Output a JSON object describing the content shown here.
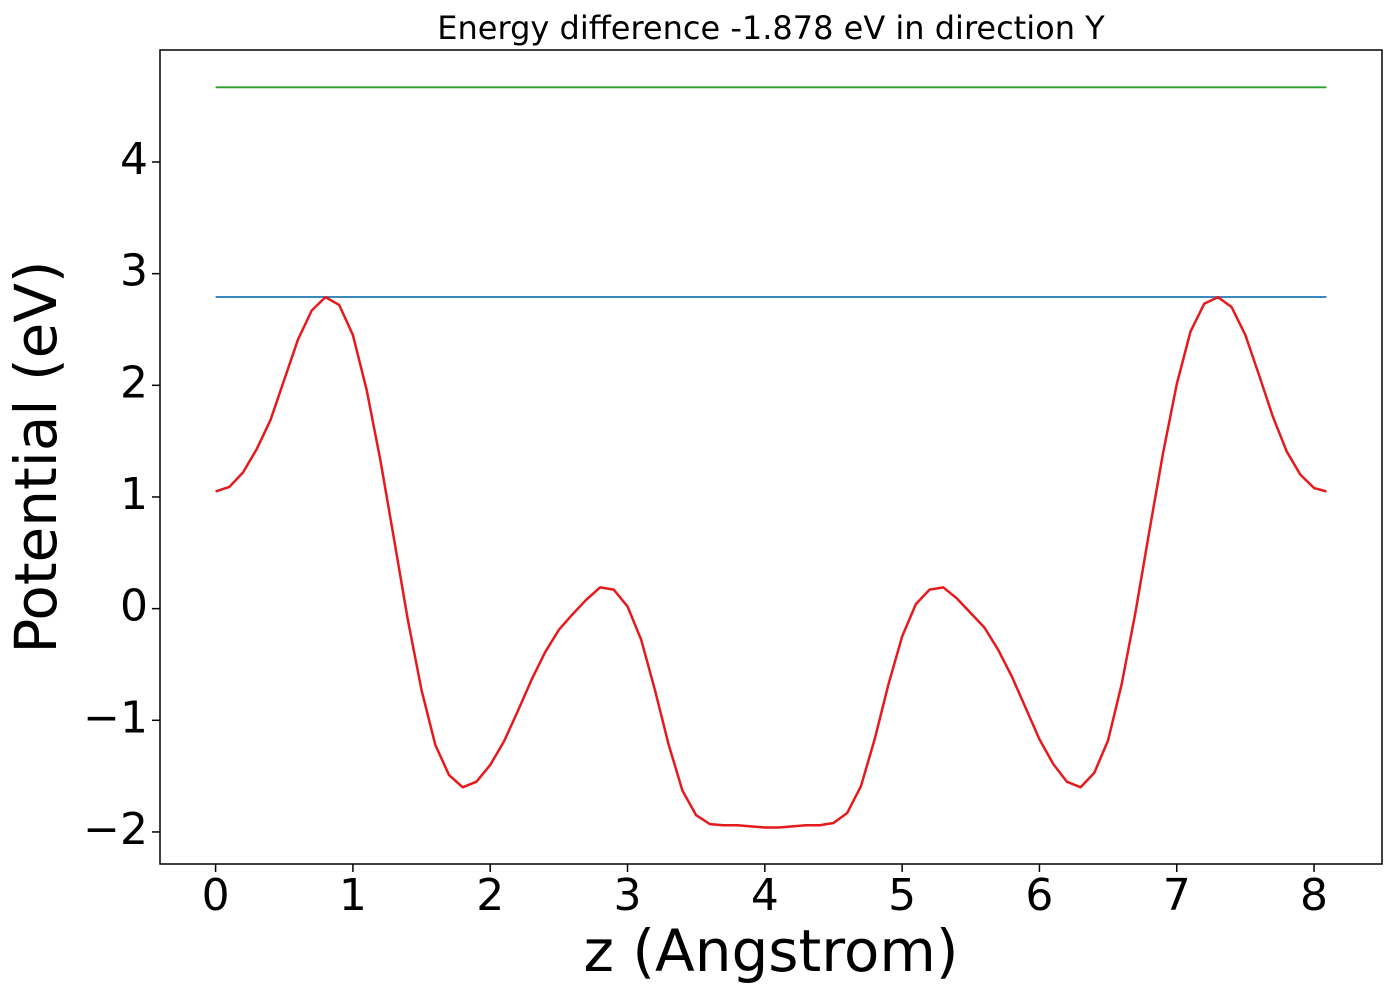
{
  "chart_data": {
    "type": "line",
    "title": "Energy difference -1.878 eV in direction Y",
    "x_label": "z (Angstrom)",
    "y_label": "Potential (eV)",
    "xlim": [
      -0.405,
      8.495
    ],
    "ylim": [
      -2.287,
      5.003
    ],
    "xticks": [
      0,
      1,
      2,
      3,
      4,
      5,
      6,
      7,
      8
    ],
    "yticks": [
      {
        "value": -2,
        "label": "−2"
      },
      {
        "value": -1,
        "label": "−1"
      },
      0,
      1,
      2,
      3,
      4
    ],
    "series": [
      {
        "color": "#2ca02c",
        "x": [
          0,
          8.09
        ],
        "values": [
          4.669,
          4.669
        ]
      },
      {
        "color": "#1f77b4",
        "x": [
          0,
          8.09
        ],
        "values": [
          2.791,
          2.791
        ]
      },
      {
        "color": "#e41a1c",
        "x": [
          0,
          0.1,
          0.2,
          0.3,
          0.4,
          0.5,
          0.6,
          0.7,
          0.8,
          0.9,
          1.0,
          1.1,
          1.2,
          1.3,
          1.4,
          1.5,
          1.6,
          1.7,
          1.8,
          1.9,
          2.0,
          2.1,
          2.2,
          2.3,
          2.4,
          2.5,
          2.6,
          2.7,
          2.8,
          2.9,
          3.0,
          3.1,
          3.2,
          3.3,
          3.4,
          3.5,
          3.6,
          3.7,
          3.8,
          3.9,
          4.0,
          4.1,
          4.2,
          4.3,
          4.4,
          4.5,
          4.6,
          4.7,
          4.8,
          4.9,
          5.0,
          5.1,
          5.2,
          5.3,
          5.4,
          5.5,
          5.6,
          5.7,
          5.8,
          5.9,
          6.0,
          6.1,
          6.2,
          6.3,
          6.4,
          6.5,
          6.6,
          6.7,
          6.8,
          6.9,
          7.0,
          7.1,
          7.2,
          7.3,
          7.4,
          7.5,
          7.6,
          7.7,
          7.8,
          7.9,
          8.0,
          8.09
        ],
        "values": [
          1.05,
          1.09,
          1.22,
          1.43,
          1.69,
          2.05,
          2.41,
          2.67,
          2.79,
          2.72,
          2.45,
          1.96,
          1.33,
          0.62,
          -0.1,
          -0.73,
          -1.22,
          -1.49,
          -1.6,
          -1.55,
          -1.4,
          -1.19,
          -0.92,
          -0.64,
          -0.39,
          -0.19,
          -0.05,
          0.08,
          0.19,
          0.17,
          0.02,
          -0.28,
          -0.73,
          -1.22,
          -1.63,
          -1.85,
          -1.93,
          -1.94,
          -1.94,
          -1.95,
          -1.96,
          -1.96,
          -1.95,
          -1.94,
          -1.94,
          -1.92,
          -1.83,
          -1.59,
          -1.17,
          -0.68,
          -0.25,
          0.04,
          0.17,
          0.19,
          0.09,
          -0.04,
          -0.17,
          -0.37,
          -0.61,
          -0.89,
          -1.17,
          -1.39,
          -1.55,
          -1.6,
          -1.47,
          -1.18,
          -0.67,
          -0.03,
          0.69,
          1.39,
          2.01,
          2.48,
          2.73,
          2.79,
          2.7,
          2.45,
          2.09,
          1.72,
          1.41,
          1.2,
          1.08,
          1.05
        ]
      }
    ]
  }
}
